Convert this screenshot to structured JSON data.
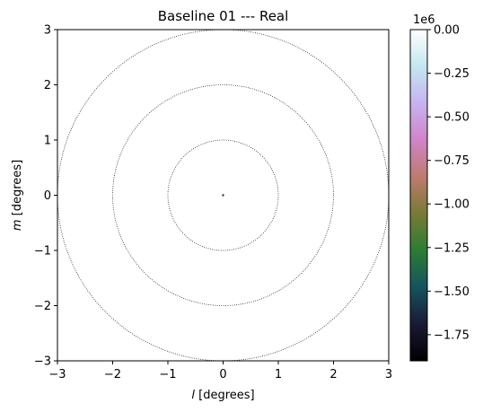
{
  "chart_data": {
    "type": "heatmap",
    "title": "Baseline 01 --- Real",
    "xlabel": {
      "symbol": "l",
      "unit": " [degrees]"
    },
    "ylabel": {
      "symbol": "m",
      "unit": " [degrees]"
    },
    "xlim": [
      -3,
      3
    ],
    "ylim": [
      -3,
      3
    ],
    "x_ticks": [
      -3,
      -2,
      -1,
      0,
      1,
      2,
      3
    ],
    "y_ticks": [
      -3,
      -2,
      -1,
      0,
      1,
      2,
      3
    ],
    "x_tick_labels": [
      "−3",
      "−2",
      "−1",
      "0",
      "1",
      "2",
      "3"
    ],
    "y_tick_labels": [
      "−3",
      "−2",
      "−1",
      "0",
      "1",
      "2",
      "3"
    ],
    "circles_radius_deg": [
      1,
      2,
      3
    ],
    "source_point": {
      "l": 0,
      "m": 0
    },
    "grid": false,
    "colorbar": {
      "colormap": "cubehelix",
      "range": [
        -1.9,
        0.0
      ],
      "offset_text": "1e6",
      "ticks": [
        0.0,
        -0.25,
        -0.5,
        -0.75,
        -1.0,
        -1.25,
        -1.5,
        -1.75
      ],
      "tick_labels": [
        "0.00",
        "−0.25",
        "−0.50",
        "−0.75",
        "−1.00",
        "−1.25",
        "−1.50",
        "−1.75"
      ],
      "colors": [
        "#000000",
        "#1a1935",
        "#15535f",
        "#2b7d33",
        "#797a36",
        "#be7b6f",
        "#d084c8",
        "#c6b3f0",
        "#c4e6f0",
        "#ffffff"
      ]
    }
  }
}
